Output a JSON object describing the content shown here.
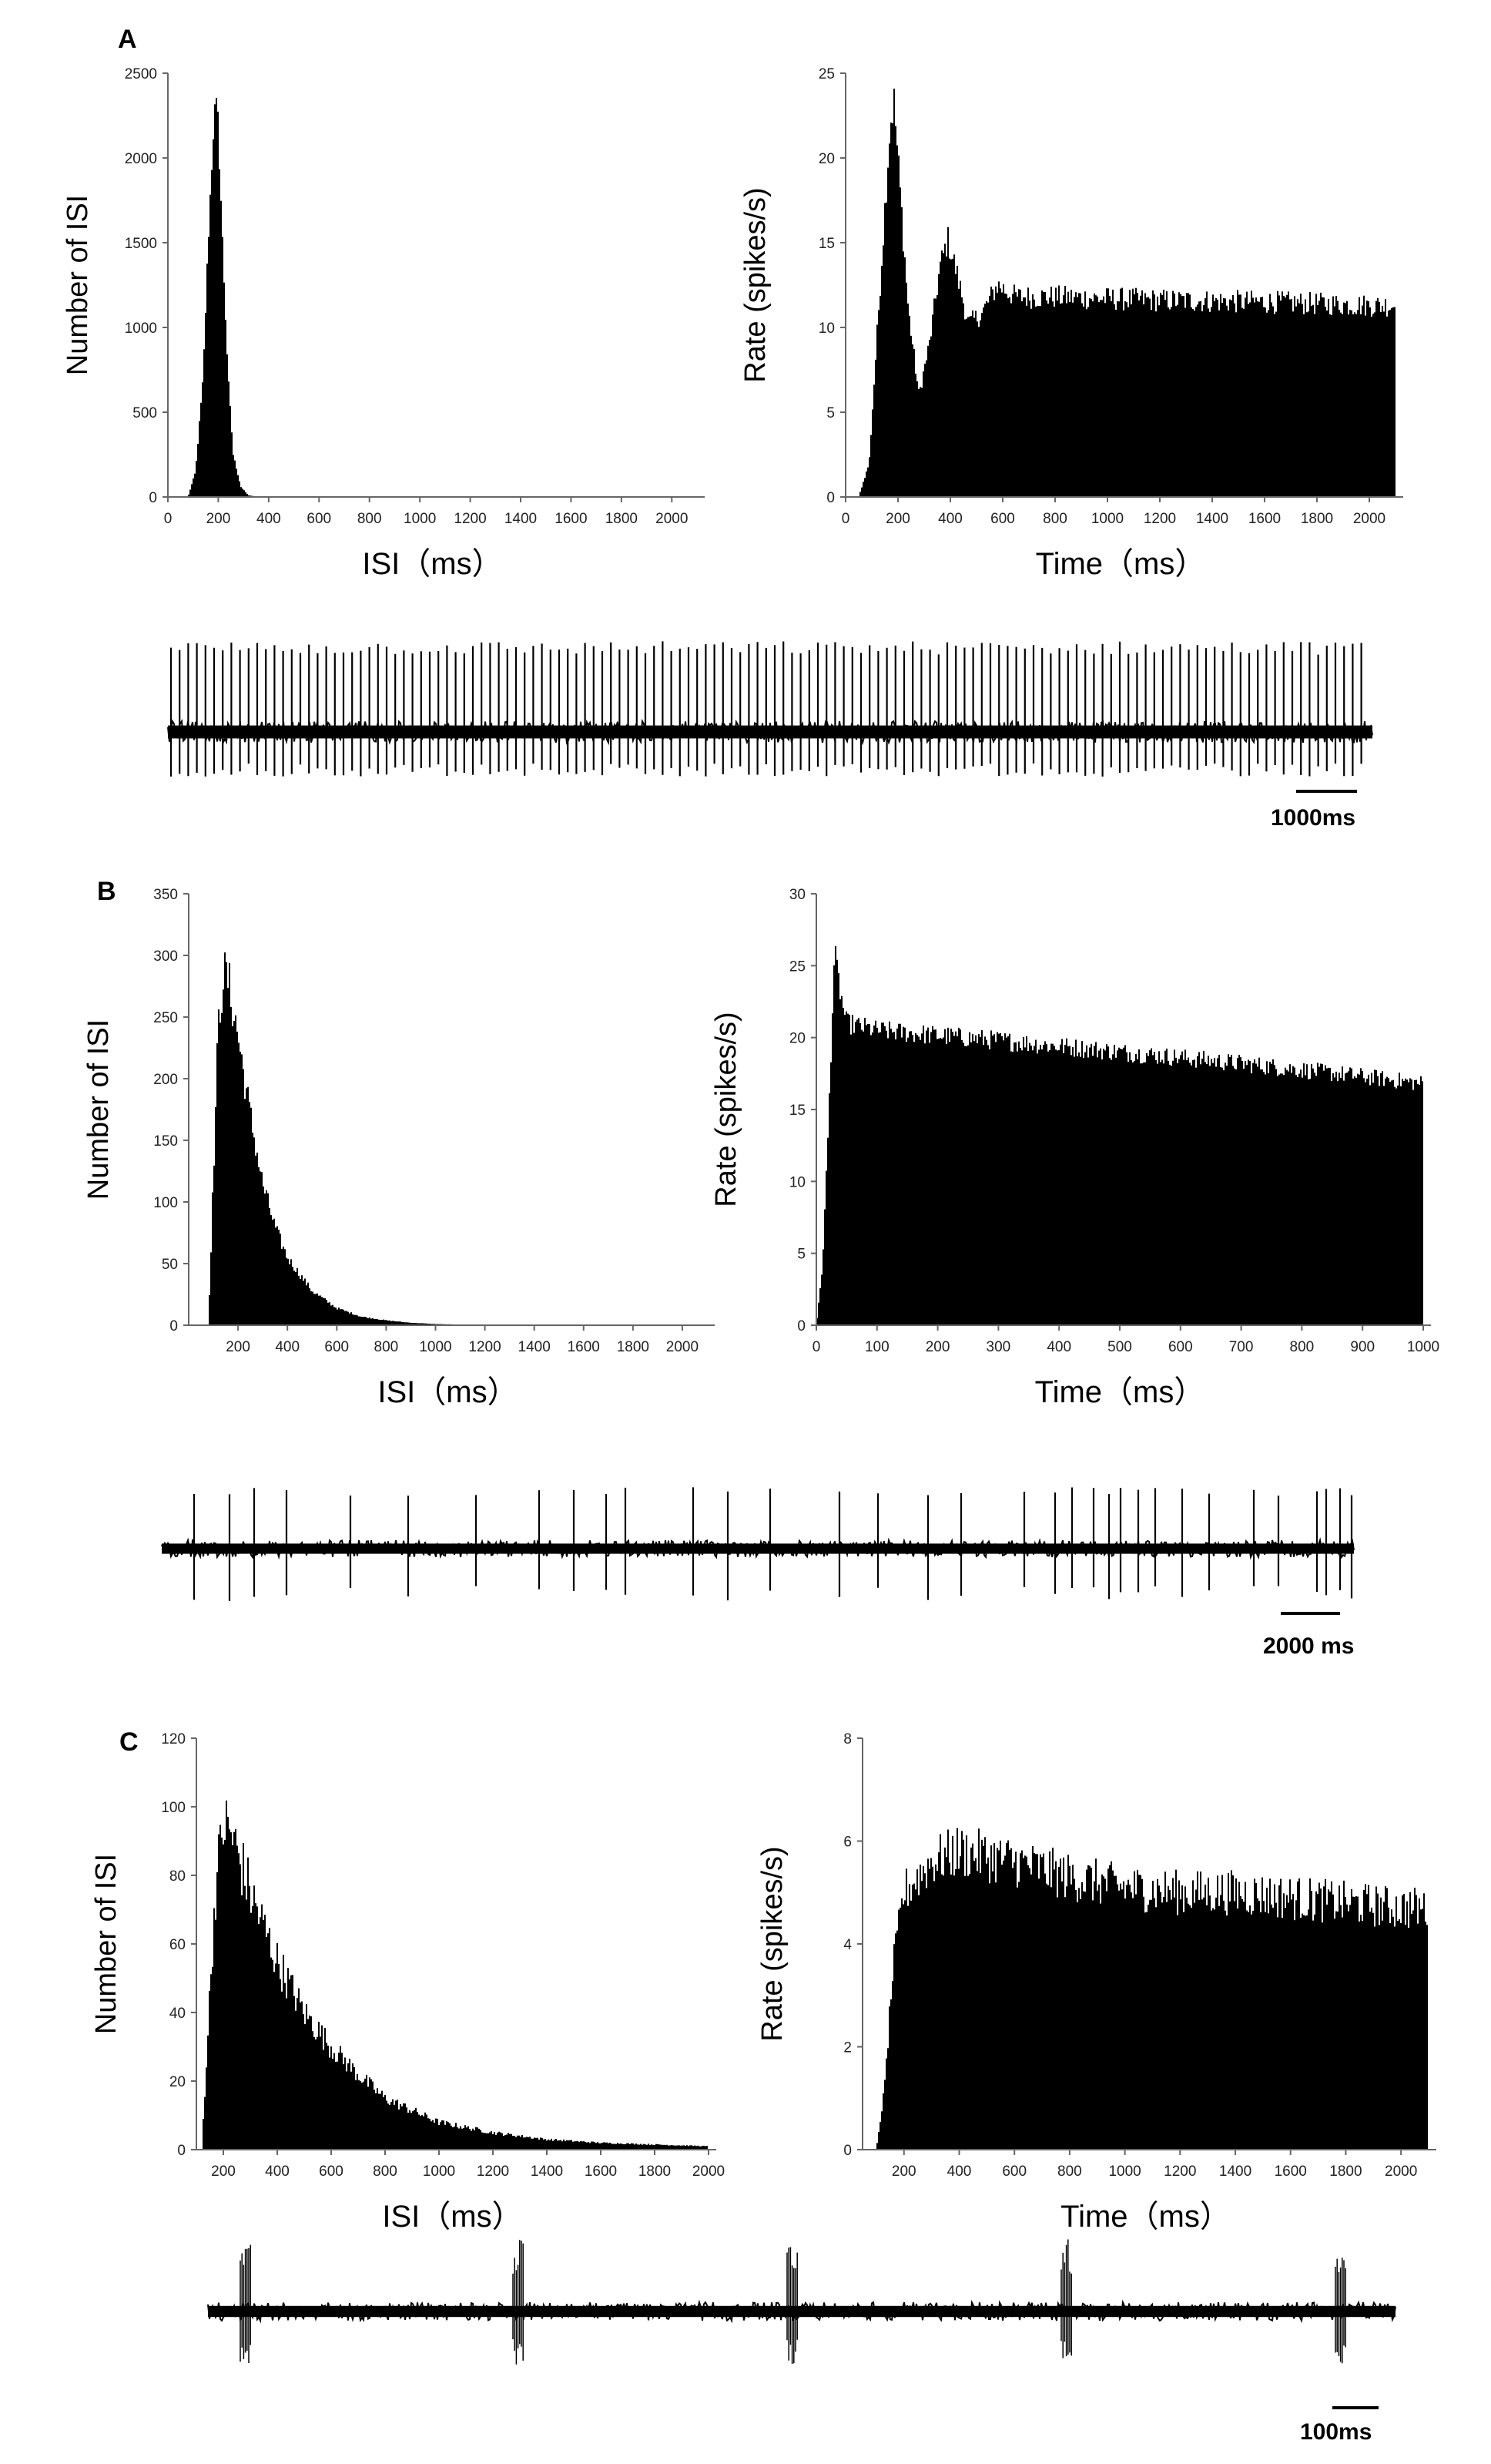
{
  "panels": [
    {
      "label": "A",
      "scale_bar": "1000ms"
    },
    {
      "label": "B",
      "scale_bar": "2000 ms"
    },
    {
      "label": "C",
      "scale_bar": "100ms"
    }
  ],
  "chart_data": [
    {
      "id": "A-isi",
      "type": "bar",
      "panel": "A",
      "title": "",
      "xlabel": "ISI（ms）",
      "ylabel": "Number of ISI",
      "xlim": [
        0,
        2100
      ],
      "ylim": [
        0,
        2500
      ],
      "xticks": [
        0,
        200,
        400,
        600,
        800,
        1000,
        1200,
        1400,
        1600,
        1800,
        2000
      ],
      "yticks": [
        0,
        500,
        1000,
        1500,
        2000,
        2500
      ],
      "profile": [
        [
          80,
          0
        ],
        [
          110,
          150
        ],
        [
          140,
          700
        ],
        [
          160,
          1500
        ],
        [
          180,
          2150
        ],
        [
          190,
          2320
        ],
        [
          200,
          2200
        ],
        [
          220,
          1400
        ],
        [
          240,
          700
        ],
        [
          260,
          250
        ],
        [
          290,
          60
        ],
        [
          320,
          10
        ],
        [
          360,
          0
        ],
        [
          2000,
          0
        ]
      ],
      "noise": 0.04
    },
    {
      "id": "A-rate",
      "type": "bar",
      "panel": "A",
      "title": "",
      "xlabel": "Time（ms）",
      "ylabel": "Rate (spikes/s)",
      "xlim": [
        0,
        2100
      ],
      "ylim": [
        0,
        25
      ],
      "xticks": [
        0,
        200,
        400,
        600,
        800,
        1000,
        1200,
        1400,
        1600,
        1800,
        2000
      ],
      "yticks": [
        0,
        5,
        10,
        15,
        20,
        25
      ],
      "profile": [
        [
          50,
          0
        ],
        [
          90,
          2
        ],
        [
          130,
          12
        ],
        [
          170,
          22
        ],
        [
          185,
          23.3
        ],
        [
          200,
          20
        ],
        [
          240,
          11
        ],
        [
          280,
          6
        ],
        [
          320,
          9
        ],
        [
          360,
          13.5
        ],
        [
          390,
          15.2
        ],
        [
          420,
          13.5
        ],
        [
          470,
          10.2
        ],
        [
          520,
          10.8
        ],
        [
          580,
          12.5
        ],
        [
          650,
          11.8
        ],
        [
          800,
          11.8
        ],
        [
          1200,
          11.6
        ],
        [
          1600,
          11.5
        ],
        [
          2000,
          11.3
        ]
      ],
      "noise": 0.06
    },
    {
      "id": "B-isi",
      "type": "bar",
      "panel": "B",
      "title": "",
      "xlabel": "ISI（ms）",
      "ylabel": "Number of ISI",
      "xlim": [
        0,
        2100
      ],
      "ylim": [
        0,
        350
      ],
      "xticks": [
        200,
        400,
        600,
        800,
        1000,
        1200,
        1400,
        1600,
        1800,
        2000
      ],
      "yticks": [
        0,
        50,
        100,
        150,
        200,
        250,
        300,
        350
      ],
      "profile": [
        [
          80,
          0
        ],
        [
          100,
          120
        ],
        [
          120,
          240
        ],
        [
          140,
          285
        ],
        [
          160,
          280
        ],
        [
          200,
          235
        ],
        [
          250,
          170
        ],
        [
          300,
          115
        ],
        [
          350,
          80
        ],
        [
          400,
          55
        ],
        [
          500,
          28
        ],
        [
          600,
          14
        ],
        [
          700,
          7
        ],
        [
          800,
          4
        ],
        [
          900,
          2
        ],
        [
          1000,
          1
        ],
        [
          1200,
          0
        ],
        [
          2000,
          0
        ]
      ],
      "noise": 0.08
    },
    {
      "id": "B-rate",
      "type": "bar",
      "panel": "B",
      "title": "",
      "xlabel": "Time（ms）",
      "ylabel": "Rate (spikes/s)",
      "xlim": [
        0,
        1000
      ],
      "ylim": [
        0,
        30
      ],
      "xticks": [
        0,
        100,
        200,
        300,
        400,
        500,
        600,
        700,
        800,
        900,
        1000
      ],
      "yticks": [
        0,
        5,
        10,
        15,
        20,
        25,
        30
      ],
      "profile": [
        [
          0,
          0
        ],
        [
          10,
          4
        ],
        [
          20,
          14
        ],
        [
          30,
          26
        ],
        [
          40,
          23
        ],
        [
          50,
          21
        ],
        [
          100,
          20.5
        ],
        [
          300,
          19.8
        ],
        [
          500,
          19
        ],
        [
          700,
          18.2
        ],
        [
          900,
          17.3
        ],
        [
          1000,
          16.8
        ]
      ],
      "noise": 0.035
    },
    {
      "id": "C-isi",
      "type": "bar",
      "panel": "C",
      "title": "",
      "xlabel": "ISI（ms）",
      "ylabel": "Number of ISI",
      "xlim": [
        100,
        2000
      ],
      "ylim": [
        0,
        120
      ],
      "xticks": [
        200,
        400,
        600,
        800,
        1000,
        1200,
        1400,
        1600,
        1800,
        2000
      ],
      "yticks": [
        0,
        20,
        40,
        60,
        80,
        100,
        120
      ],
      "profile": [
        [
          120,
          0
        ],
        [
          140,
          30
        ],
        [
          170,
          75
        ],
        [
          200,
          95
        ],
        [
          230,
          92
        ],
        [
          300,
          75
        ],
        [
          400,
          55
        ],
        [
          500,
          40
        ],
        [
          600,
          30
        ],
        [
          700,
          22
        ],
        [
          800,
          15
        ],
        [
          1000,
          8
        ],
        [
          1200,
          5
        ],
        [
          1400,
          3
        ],
        [
          1600,
          2
        ],
        [
          1800,
          1.5
        ],
        [
          2000,
          1
        ]
      ],
      "noise": 0.12
    },
    {
      "id": "C-rate",
      "type": "bar",
      "panel": "C",
      "title": "",
      "xlabel": "Time（ms）",
      "ylabel": "Rate (spikes/s)",
      "xlim": [
        50,
        2100
      ],
      "ylim": [
        0,
        8
      ],
      "xticks": [
        200,
        400,
        600,
        800,
        1000,
        1200,
        1400,
        1600,
        1800,
        2000
      ],
      "yticks": [
        0,
        2,
        4,
        6,
        8
      ],
      "profile": [
        [
          100,
          0
        ],
        [
          130,
          1.2
        ],
        [
          160,
          3.5
        ],
        [
          200,
          5.0
        ],
        [
          300,
          5.6
        ],
        [
          400,
          5.8
        ],
        [
          600,
          5.6
        ],
        [
          800,
          5.3
        ],
        [
          1000,
          5.1
        ],
        [
          1200,
          5.0
        ],
        [
          1400,
          5.0
        ],
        [
          1600,
          4.9
        ],
        [
          1800,
          4.8
        ],
        [
          2000,
          4.7
        ]
      ],
      "noise": 0.09
    }
  ]
}
